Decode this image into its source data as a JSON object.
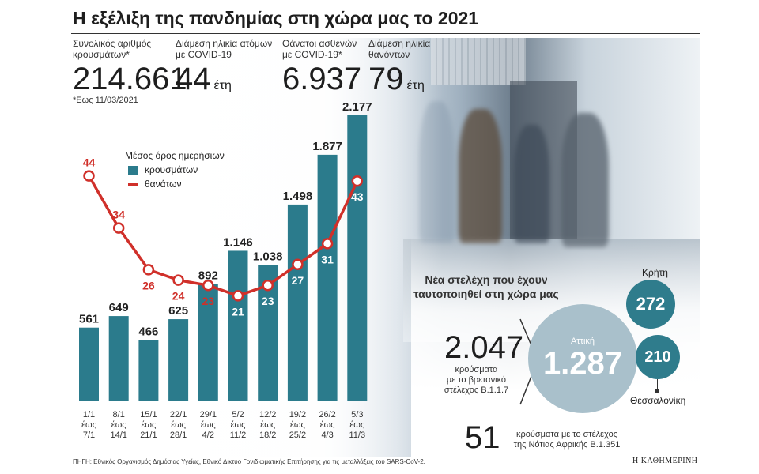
{
  "title": "Η εξέλιξη της πανδημίας στη χώρα μας το 2021",
  "stats": [
    {
      "label_1": "Συνολικός αριθμός",
      "label_2": "κρουσμάτων*",
      "value": "214.661",
      "unit": ""
    },
    {
      "label_1": "Διάμεση ηλικία ατόμων",
      "label_2": "με COVID-19",
      "value": "44",
      "unit": "έτη"
    },
    {
      "label_1": "Θάνατοι ασθενών",
      "label_2": "με COVID-19*",
      "value": "6.937",
      "unit": ""
    },
    {
      "label_1": "Διάμεση ηλικία",
      "label_2": "θανόντων",
      "value": "79",
      "unit": "έτη"
    }
  ],
  "note": "*Εως 11/03/2021",
  "legend": {
    "heading": "Μέσος όρος ημερήσιων",
    "bars_label": "κρουσμάτων",
    "line_label": "θανάτων"
  },
  "colors": {
    "bar": "#2b7b8c",
    "line": "#d0302a",
    "bubble": "#2f7c8c",
    "big_bubble": "#a9c0cb"
  },
  "chart_data": {
    "type": "bar",
    "categories": [
      [
        "1/1",
        "έως",
        "7/1"
      ],
      [
        "8/1",
        "έως",
        "14/1"
      ],
      [
        "15/1",
        "έως",
        "21/1"
      ],
      [
        "22/1",
        "έως",
        "28/1"
      ],
      [
        "29/1",
        "έως",
        "4/2"
      ],
      [
        "5/2",
        "έως",
        "11/2"
      ],
      [
        "12/2",
        "έως",
        "18/2"
      ],
      [
        "19/2",
        "έως",
        "25/2"
      ],
      [
        "26/2",
        "έως",
        "4/3"
      ],
      [
        "5/3",
        "έως",
        "11/3"
      ]
    ],
    "series": [
      {
        "name": "κρουσμάτων",
        "type": "bar",
        "values": [
          561,
          649,
          466,
          625,
          892,
          1146,
          1038,
          1498,
          1877,
          2177
        ],
        "labels": [
          "561",
          "649",
          "466",
          "625",
          "892",
          "1.146",
          "1.038",
          "1.498",
          "1.877",
          "2.177"
        ]
      },
      {
        "name": "θανάτων",
        "type": "line",
        "values": [
          44,
          34,
          26,
          24,
          23,
          21,
          23,
          27,
          31,
          43
        ],
        "labels": [
          "44",
          "34",
          "26",
          "24",
          "23",
          "21",
          "23",
          "27",
          "31",
          "43"
        ]
      }
    ]
  },
  "variants": {
    "heading_1": "Νέα στελέχη που έχουν",
    "heading_2": "ταυτοποιηθεί στη χώρα μας",
    "uk_total": "2.047",
    "uk_text_1": "κρούσματα",
    "uk_text_2": "με το βρετανικό",
    "uk_text_3": "στέλεχος Β.1.1.7",
    "attica_label": "Αττική",
    "attica_value": "1.287",
    "crete_label": "Κρήτη",
    "crete_value": "272",
    "thessaloniki_label": "Θεσσαλονίκη",
    "thessaloniki_value": "210",
    "sa_total": "51",
    "sa_text_1": "κρούσματα με το στέλεχος",
    "sa_text_2": "της Νότιας Αφρικής Β.1.351"
  },
  "source": "ΠΗΓΗ: Εθνικός Οργανισμός Δημόσιας Υγείας, Εθνικό Δίκτυο Γονιδιωματικής Επιτήρησης για τις μεταλλάξεις του SARS-CoV-2.",
  "brand": "Η ΚΑΘΗΜΕΡΙΝΗ"
}
